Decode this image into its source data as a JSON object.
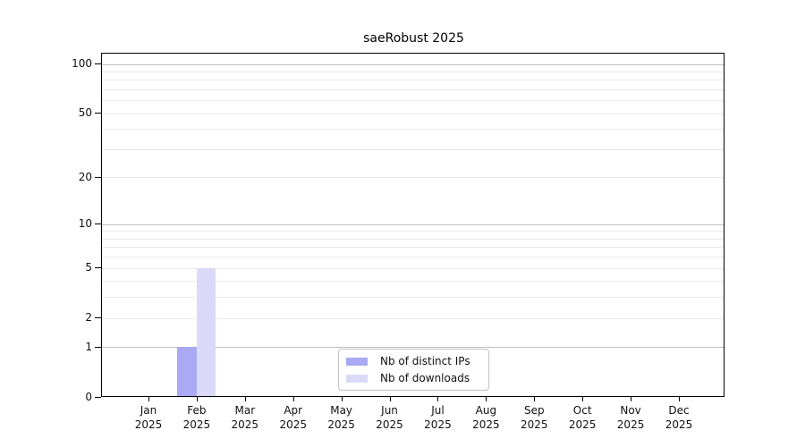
{
  "chart_data": {
    "type": "bar",
    "title": "saeRobust 2025",
    "categories": [
      "Jan",
      "Feb",
      "Mar",
      "Apr",
      "May",
      "Jun",
      "Jul",
      "Aug",
      "Sep",
      "Oct",
      "Nov",
      "Dec"
    ],
    "category_year": "2025",
    "series": [
      {
        "name": "Nb of distinct IPs",
        "color": "#a9a9f4",
        "values": [
          0,
          1,
          0,
          0,
          0,
          0,
          0,
          0,
          0,
          0,
          0,
          0
        ]
      },
      {
        "name": "Nb of downloads",
        "color": "#dadaf8",
        "values": [
          0,
          5,
          0,
          0,
          0,
          0,
          0,
          0,
          0,
          0,
          0,
          0
        ]
      }
    ],
    "y_axis": {
      "scale": "log1p",
      "tick_values": [
        0,
        1,
        2,
        5,
        10,
        20,
        50,
        100
      ],
      "major_grid_values": [
        1,
        10,
        100
      ],
      "minor_grid_values": [
        2,
        3,
        4,
        5,
        6,
        7,
        8,
        9,
        20,
        30,
        40,
        50,
        60,
        70,
        80,
        90
      ],
      "max_tick_value": 100
    },
    "legend": {
      "position": "bottom-center"
    },
    "grid": true,
    "colors": {
      "major_grid": "#bdbdbd",
      "minor_grid": "#e9e9e9",
      "axis": "#000000",
      "text": "#111111",
      "background": "#ffffff"
    }
  }
}
